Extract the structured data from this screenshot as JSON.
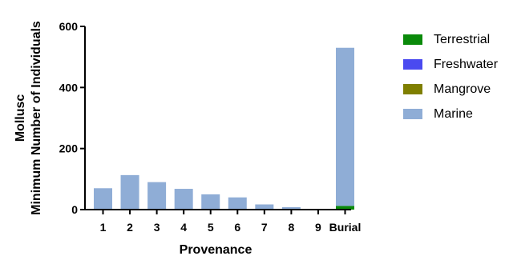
{
  "chart_data": {
    "type": "bar",
    "stacked": true,
    "categories": [
      "1",
      "2",
      "3",
      "4",
      "5",
      "6",
      "7",
      "8",
      "9",
      "Burial"
    ],
    "series": [
      {
        "name": "Terrestrial",
        "color": "#0a8a0a",
        "values": [
          0,
          0,
          0,
          0,
          0,
          0,
          0,
          0,
          0,
          12
        ]
      },
      {
        "name": "Freshwater",
        "color": "#4a4af0",
        "values": [
          0,
          0,
          0,
          0,
          0,
          0,
          0,
          0,
          0,
          0
        ]
      },
      {
        "name": "Mangrove",
        "color": "#7f7f00",
        "values": [
          0,
          0,
          0,
          0,
          0,
          0,
          0,
          0,
          0,
          0
        ]
      },
      {
        "name": "Marine",
        "color": "#8fadd6",
        "values": [
          70,
          113,
          90,
          68,
          50,
          40,
          17,
          8,
          0,
          518
        ]
      }
    ],
    "xlabel": "Provenance",
    "ylabel_line1": "Mollusc",
    "ylabel_line2": "Minimum Number of Individuals",
    "ylim": [
      0,
      600
    ],
    "yticks": [
      0,
      200,
      400,
      600
    ],
    "grid": false,
    "legend_position": "right"
  }
}
